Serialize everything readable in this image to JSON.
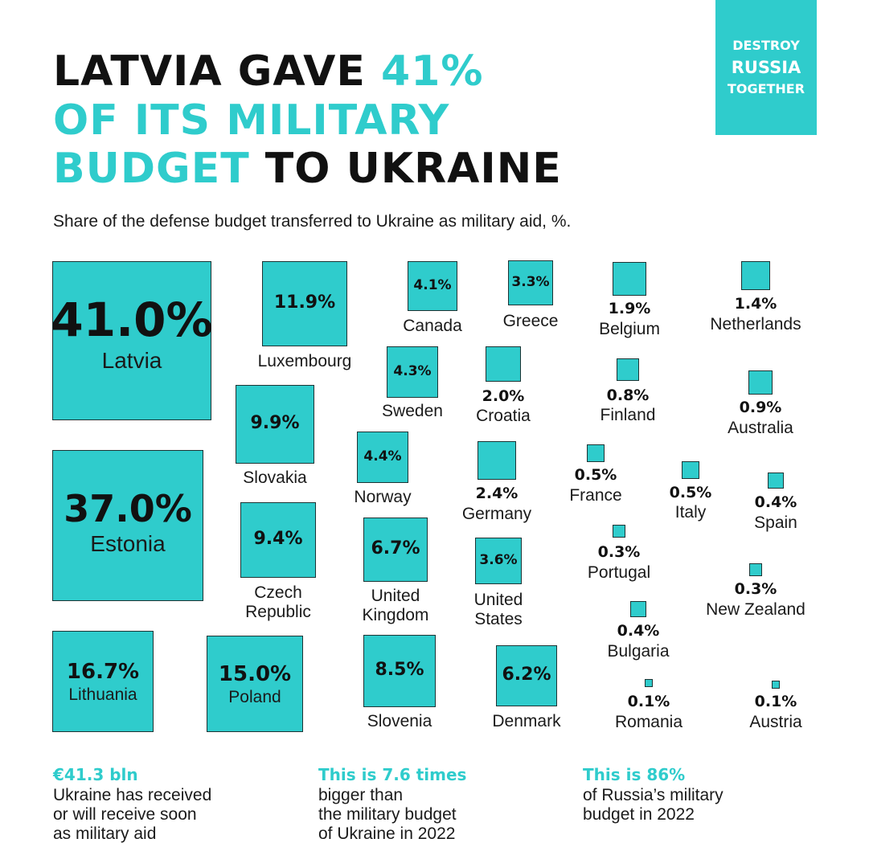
{
  "title": {
    "line1_dark": "LATVIA GAVE ",
    "line1_accent": "41%",
    "line2_accent": "OF ITS MILITARY",
    "line3_accent": "BUDGET",
    "line3_dark": " TO UKRAINE"
  },
  "badge": {
    "line1": "DESTROY",
    "line2": "RUSSIA",
    "line3": "TOGETHER"
  },
  "subtitle": "Share of the defense budget transferred to Ukraine as military aid, %.",
  "colors": {
    "accent": "#2fcccc",
    "text": "#141414",
    "border": "#1d3434"
  },
  "chart_data": {
    "type": "proportional-squares",
    "unit": "%",
    "items": [
      {
        "country": "Latvia",
        "label": "41.0%",
        "value": 41.0
      },
      {
        "country": "Estonia",
        "label": "37.0%",
        "value": 37.0
      },
      {
        "country": "Lithuania",
        "label": "16.7%",
        "value": 16.7
      },
      {
        "country": "Poland",
        "label": "15.0%",
        "value": 15.0
      },
      {
        "country": "Luxembourg",
        "label": "11.9%",
        "value": 11.9
      },
      {
        "country": "Slovakia",
        "label": "9.9%",
        "value": 9.9
      },
      {
        "country": "Czech\nRepublic",
        "label": "9.4%",
        "value": 9.4
      },
      {
        "country": "Slovenia",
        "label": "8.5%",
        "value": 8.5
      },
      {
        "country": "United\nKingdom",
        "label": "6.7%",
        "value": 6.7
      },
      {
        "country": "Denmark",
        "label": "6.2%",
        "value": 6.2
      },
      {
        "country": "Norway",
        "label": "4.4%",
        "value": 4.4
      },
      {
        "country": "Sweden",
        "label": "4.3%",
        "value": 4.3
      },
      {
        "country": "Canada",
        "label": "4.1%",
        "value": 4.1
      },
      {
        "country": "United\nStates",
        "label": "3.6%",
        "value": 3.6
      },
      {
        "country": "Greece",
        "label": "3.3%",
        "value": 3.3
      },
      {
        "country": "Germany",
        "label": "2.4%",
        "value": 2.4
      },
      {
        "country": "Croatia",
        "label": "2.0%",
        "value": 2.0
      },
      {
        "country": "Belgium",
        "label": "1.9%",
        "value": 1.9
      },
      {
        "country": "Netherlands",
        "label": "1.4%",
        "value": 1.4
      },
      {
        "country": "Australia",
        "label": "0.9%",
        "value": 0.9
      },
      {
        "country": "Finland",
        "label": "0.8%",
        "value": 0.8
      },
      {
        "country": "France",
        "label": "0.5%",
        "value": 0.5
      },
      {
        "country": "Italy",
        "label": "0.5%",
        "value": 0.5
      },
      {
        "country": "Spain",
        "label": "0.4%",
        "value": 0.4
      },
      {
        "country": "Bulgaria",
        "label": "0.4%",
        "value": 0.4
      },
      {
        "country": "Portugal",
        "label": "0.3%",
        "value": 0.3
      },
      {
        "country": "New Zealand",
        "label": "0.3%",
        "value": 0.3
      },
      {
        "country": "Romania",
        "label": "0.1%",
        "value": 0.1
      },
      {
        "country": "Austria",
        "label": "0.1%",
        "value": 0.1
      }
    ]
  },
  "stats": [
    {
      "headline": "€41.3 bln",
      "body": "Ukraine has received\nor will receive soon\nas military aid"
    },
    {
      "headline": "This is 7.6 times",
      "body": "bigger than\nthe military budget\nof Ukraine in 2022"
    },
    {
      "headline": "This is 86%",
      "body": "of Russia’s military\nbudget in 2022"
    }
  ]
}
